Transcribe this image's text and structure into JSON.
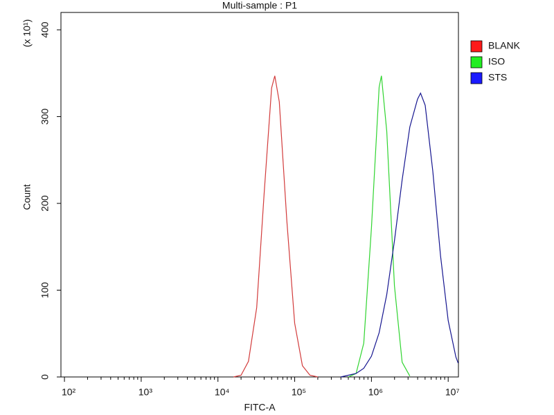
{
  "chart_data": {
    "type": "line",
    "title": "Multi-sample : P1",
    "x_label": "FITC-A",
    "y_label": "Count",
    "y_multiplier": "(x 10¹)",
    "x_log": true,
    "xlim": [
      90,
      13600000
    ],
    "ylim": [
      0,
      420
    ],
    "xticks": [
      {
        "value": 100,
        "label": "10²"
      },
      {
        "value": 1000,
        "label": "10³"
      },
      {
        "value": 10000,
        "label": "10⁴"
      },
      {
        "value": 100000,
        "label": "10⁵"
      },
      {
        "value": 1000000,
        "label": "10⁶"
      },
      {
        "value": 10000000,
        "label": "10⁷"
      }
    ],
    "yticks": [
      0,
      100,
      200,
      300,
      400
    ],
    "legend": "right",
    "series": [
      {
        "name": "BLANK",
        "color": "#d23a3a",
        "legend_color": "#ff1a1a",
        "x": [
          16000,
          20000,
          25000,
          32000,
          40000,
          50000,
          55000,
          63000,
          79000,
          100000,
          126000,
          158000,
          200000
        ],
        "values": [
          0,
          2,
          18,
          80,
          211,
          333,
          347,
          317,
          180,
          62,
          13,
          2,
          0
        ]
      },
      {
        "name": "ISO",
        "color": "#2fd42f",
        "legend_color": "#22ee22",
        "x": [
          501000,
          631000,
          794000,
          1000000,
          1259000,
          1349000,
          1585000,
          1995000,
          2512000,
          3162000
        ],
        "values": [
          0,
          4,
          39,
          172,
          334,
          347,
          283,
          105,
          17,
          1
        ]
      },
      {
        "name": "STS",
        "color": "#14148f",
        "legend_color": "#1a1aff",
        "x": [
          398000,
          631000,
          794000,
          1000000,
          1259000,
          1585000,
          1995000,
          2512000,
          3162000,
          3981000,
          4365000,
          5012000,
          6310000,
          7943000,
          10000000,
          12589000,
          13490000
        ],
        "values": [
          0,
          4,
          10,
          24,
          51,
          95,
          157,
          227,
          288,
          320,
          327,
          313,
          237,
          140,
          65,
          23,
          16
        ]
      }
    ]
  }
}
